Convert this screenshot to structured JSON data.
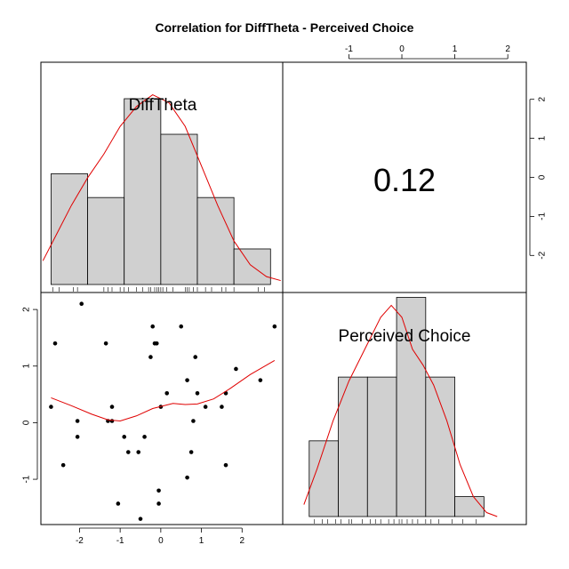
{
  "chart_data": {
    "type": "pairs",
    "title": "Correlation  for DiffTheta - Perceived Choice",
    "variables": [
      "DiffTheta",
      "Perceived Choice"
    ],
    "correlation_label": "0.12",
    "x_ticks": [
      -2,
      -1,
      0,
      1,
      2
    ],
    "y_ticks": [
      -1,
      0,
      1,
      2
    ],
    "top_ticks": [
      -1,
      0,
      1,
      2
    ],
    "right_ticks": [
      -2,
      -1,
      0,
      1,
      2
    ],
    "diff_theta_hist": {
      "breaks": [
        -2.7,
        -1.8,
        -0.9,
        0.0,
        0.9,
        1.8,
        2.7
      ],
      "density": [
        0.28,
        0.22,
        0.47,
        0.38,
        0.22,
        0.09
      ],
      "rug": [
        -2.65,
        -2.5,
        -2.15,
        -2.05,
        -1.4,
        -1.3,
        -1.2,
        -1.0,
        -0.9,
        -0.8,
        -0.6,
        -0.45,
        -0.3,
        -0.25,
        -0.15,
        -0.1,
        -0.05,
        0.0,
        0.05,
        0.15,
        0.3,
        0.6,
        0.65,
        0.7,
        0.8,
        0.9,
        1.1,
        1.25,
        1.5,
        1.6,
        1.8,
        2.4,
        2.55
      ]
    },
    "perceived_choice_hist": {
      "breaks": [
        -1.75,
        -1.2,
        -0.65,
        -0.1,
        0.45,
        1.0,
        1.55
      ],
      "density": [
        0.19,
        0.35,
        0.35,
        0.55,
        0.35,
        0.05
      ],
      "rug": [
        -1.65,
        -1.5,
        -1.4,
        -1.25,
        -1.15,
        -1.0,
        -0.95,
        -0.75,
        -0.6,
        -0.5,
        -0.4,
        -0.25,
        -0.15,
        -0.05,
        0.0,
        0.1,
        0.2,
        0.3,
        0.45,
        0.55,
        0.7,
        0.95,
        1.15,
        1.4
      ]
    },
    "scatter_points": [
      [
        -2.7,
        0.28
      ],
      [
        -2.6,
        1.4
      ],
      [
        -2.4,
        -0.75
      ],
      [
        -2.05,
        0.03
      ],
      [
        -2.05,
        -0.25
      ],
      [
        -1.95,
        2.1
      ],
      [
        -1.35,
        1.4
      ],
      [
        -1.3,
        0.03
      ],
      [
        -1.2,
        0.03
      ],
      [
        -1.2,
        0.28
      ],
      [
        -1.05,
        -1.43
      ],
      [
        -0.9,
        -0.25
      ],
      [
        -0.8,
        -0.52
      ],
      [
        -0.55,
        -0.52
      ],
      [
        -0.5,
        -1.7
      ],
      [
        -0.4,
        -0.25
      ],
      [
        -0.25,
        1.16
      ],
      [
        -0.2,
        1.7
      ],
      [
        -0.15,
        1.4
      ],
      [
        -0.1,
        1.4
      ],
      [
        -0.05,
        -1.2
      ],
      [
        -0.05,
        -1.43
      ],
      [
        0.0,
        0.28
      ],
      [
        0.15,
        0.52
      ],
      [
        0.5,
        1.7
      ],
      [
        0.65,
        0.75
      ],
      [
        0.65,
        -0.97
      ],
      [
        0.75,
        -0.52
      ],
      [
        0.8,
        0.03
      ],
      [
        0.85,
        1.16
      ],
      [
        0.9,
        0.52
      ],
      [
        1.1,
        0.28
      ],
      [
        1.5,
        0.28
      ],
      [
        1.6,
        0.52
      ],
      [
        1.6,
        -0.75
      ],
      [
        1.85,
        0.95
      ],
      [
        2.45,
        0.75
      ],
      [
        2.8,
        1.7
      ]
    ],
    "smoother": [
      [
        -2.7,
        0.44
      ],
      [
        -2.2,
        0.3
      ],
      [
        -1.7,
        0.15
      ],
      [
        -1.3,
        0.05
      ],
      [
        -1.0,
        0.03
      ],
      [
        -0.6,
        0.12
      ],
      [
        -0.2,
        0.25
      ],
      [
        0.3,
        0.34
      ],
      [
        0.6,
        0.32
      ],
      [
        0.9,
        0.33
      ],
      [
        1.3,
        0.42
      ],
      [
        1.7,
        0.6
      ],
      [
        2.2,
        0.85
      ],
      [
        2.8,
        1.1
      ]
    ],
    "diff_theta_density": [
      [
        -2.9,
        0.06
      ],
      [
        -2.6,
        0.12
      ],
      [
        -2.2,
        0.2
      ],
      [
        -1.8,
        0.27
      ],
      [
        -1.4,
        0.33
      ],
      [
        -1.0,
        0.4
      ],
      [
        -0.6,
        0.45
      ],
      [
        -0.2,
        0.48
      ],
      [
        0.2,
        0.46
      ],
      [
        0.6,
        0.4
      ],
      [
        1.0,
        0.3
      ],
      [
        1.4,
        0.2
      ],
      [
        1.8,
        0.11
      ],
      [
        2.2,
        0.05
      ],
      [
        2.6,
        0.02
      ],
      [
        2.95,
        0.01
      ]
    ],
    "perceived_choice_density": [
      [
        -1.85,
        0.03
      ],
      [
        -1.6,
        0.12
      ],
      [
        -1.3,
        0.24
      ],
      [
        -1.0,
        0.34
      ],
      [
        -0.7,
        0.42
      ],
      [
        -0.4,
        0.5
      ],
      [
        -0.2,
        0.53
      ],
      [
        0.0,
        0.5
      ],
      [
        0.2,
        0.42
      ],
      [
        0.4,
        0.38
      ],
      [
        0.6,
        0.33
      ],
      [
        0.85,
        0.24
      ],
      [
        1.1,
        0.13
      ],
      [
        1.35,
        0.05
      ],
      [
        1.6,
        0.01
      ],
      [
        1.8,
        0.0
      ]
    ]
  }
}
